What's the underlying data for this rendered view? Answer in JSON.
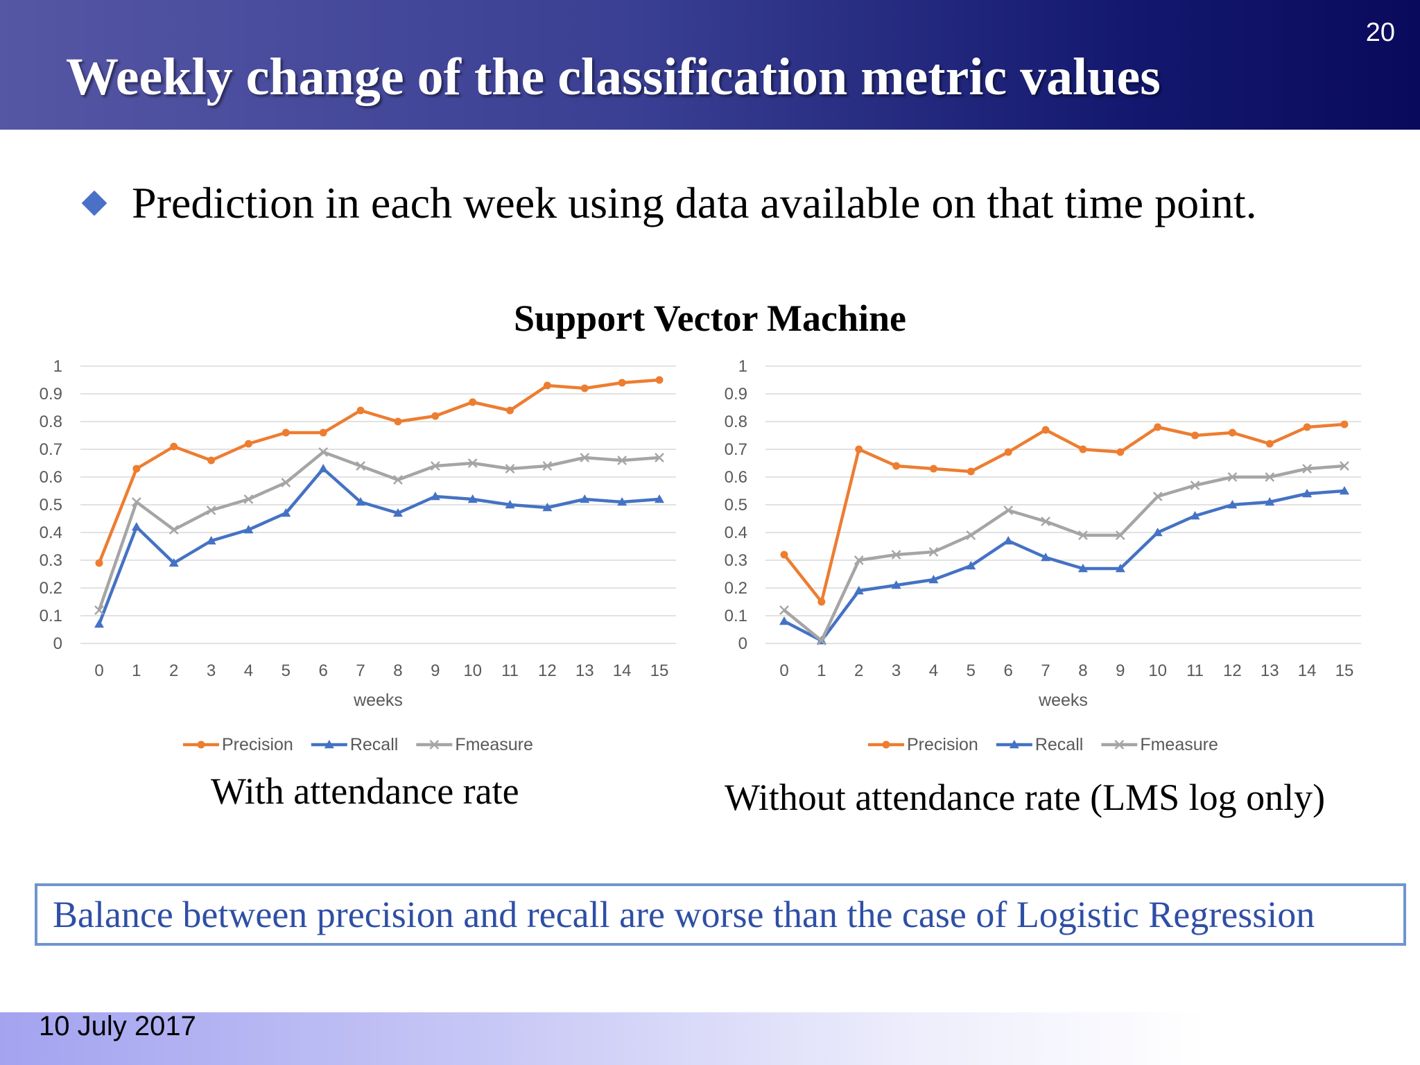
{
  "slide": {
    "title": "Weekly change of the classification metric values",
    "page_number": "20",
    "bullet": "Prediction in each week using data available on that time point.",
    "chart_heading": "Support Vector Machine",
    "caption_left": "With attendance rate",
    "caption_right": "Without attendance rate (LMS log only)",
    "conclusion": "Balance between precision and recall are worse than the case of Logistic Regression",
    "footer_date": "10 July 2017"
  },
  "colors": {
    "Precision": "#ed7d31",
    "Recall": "#4472c4",
    "Fmeasure": "#a5a5a5",
    "bullet": "#4a70c8",
    "conclusion_text": "#2f4fa5"
  },
  "chart_data": [
    {
      "type": "line",
      "title": "",
      "xlabel": "weeks",
      "ylabel": "",
      "ylim": [
        0,
        1
      ],
      "yticks": [
        "0",
        "0.1",
        "0.2",
        "0.3",
        "0.4",
        "0.5",
        "0.6",
        "0.7",
        "0.8",
        "0.9",
        "1"
      ],
      "x": [
        "0",
        "1",
        "2",
        "3",
        "4",
        "5",
        "6",
        "7",
        "8",
        "9",
        "10",
        "11",
        "12",
        "13",
        "14",
        "15"
      ],
      "legend_position": "bottom",
      "grid": true,
      "series": [
        {
          "name": "Precision",
          "marker": "circle",
          "values": [
            0.29,
            0.63,
            0.71,
            0.66,
            0.72,
            0.76,
            0.76,
            0.84,
            0.8,
            0.82,
            0.87,
            0.84,
            0.93,
            0.92,
            0.94,
            0.95
          ]
        },
        {
          "name": "Recall",
          "marker": "triangle",
          "values": [
            0.07,
            0.42,
            0.29,
            0.37,
            0.41,
            0.47,
            0.63,
            0.51,
            0.47,
            0.53,
            0.52,
            0.5,
            0.49,
            0.52,
            0.51,
            0.52
          ]
        },
        {
          "name": "Fmeasure",
          "marker": "x",
          "values": [
            0.12,
            0.51,
            0.41,
            0.48,
            0.52,
            0.58,
            0.69,
            0.64,
            0.59,
            0.64,
            0.65,
            0.63,
            0.64,
            0.67,
            0.66,
            0.67
          ]
        }
      ]
    },
    {
      "type": "line",
      "title": "",
      "xlabel": "weeks",
      "ylabel": "",
      "ylim": [
        0,
        1
      ],
      "yticks": [
        "0",
        "0.1",
        "0.2",
        "0.3",
        "0.4",
        "0.5",
        "0.6",
        "0.7",
        "0.8",
        "0.9",
        "1"
      ],
      "x": [
        "0",
        "1",
        "2",
        "3",
        "4",
        "5",
        "6",
        "7",
        "8",
        "9",
        "10",
        "11",
        "12",
        "13",
        "14",
        "15"
      ],
      "legend_position": "bottom",
      "grid": true,
      "series": [
        {
          "name": "Precision",
          "marker": "circle",
          "values": [
            0.32,
            0.15,
            0.7,
            0.64,
            0.63,
            0.62,
            0.69,
            0.77,
            0.7,
            0.69,
            0.78,
            0.75,
            0.76,
            0.72,
            0.78,
            0.79
          ]
        },
        {
          "name": "Recall",
          "marker": "triangle",
          "values": [
            0.08,
            0.01,
            0.19,
            0.21,
            0.23,
            0.28,
            0.37,
            0.31,
            0.27,
            0.27,
            0.4,
            0.46,
            0.5,
            0.51,
            0.54,
            0.55
          ]
        },
        {
          "name": "Fmeasure",
          "marker": "x",
          "values": [
            0.12,
            0.01,
            0.3,
            0.32,
            0.33,
            0.39,
            0.48,
            0.44,
            0.39,
            0.39,
            0.53,
            0.57,
            0.6,
            0.6,
            0.63,
            0.64
          ]
        }
      ]
    }
  ]
}
